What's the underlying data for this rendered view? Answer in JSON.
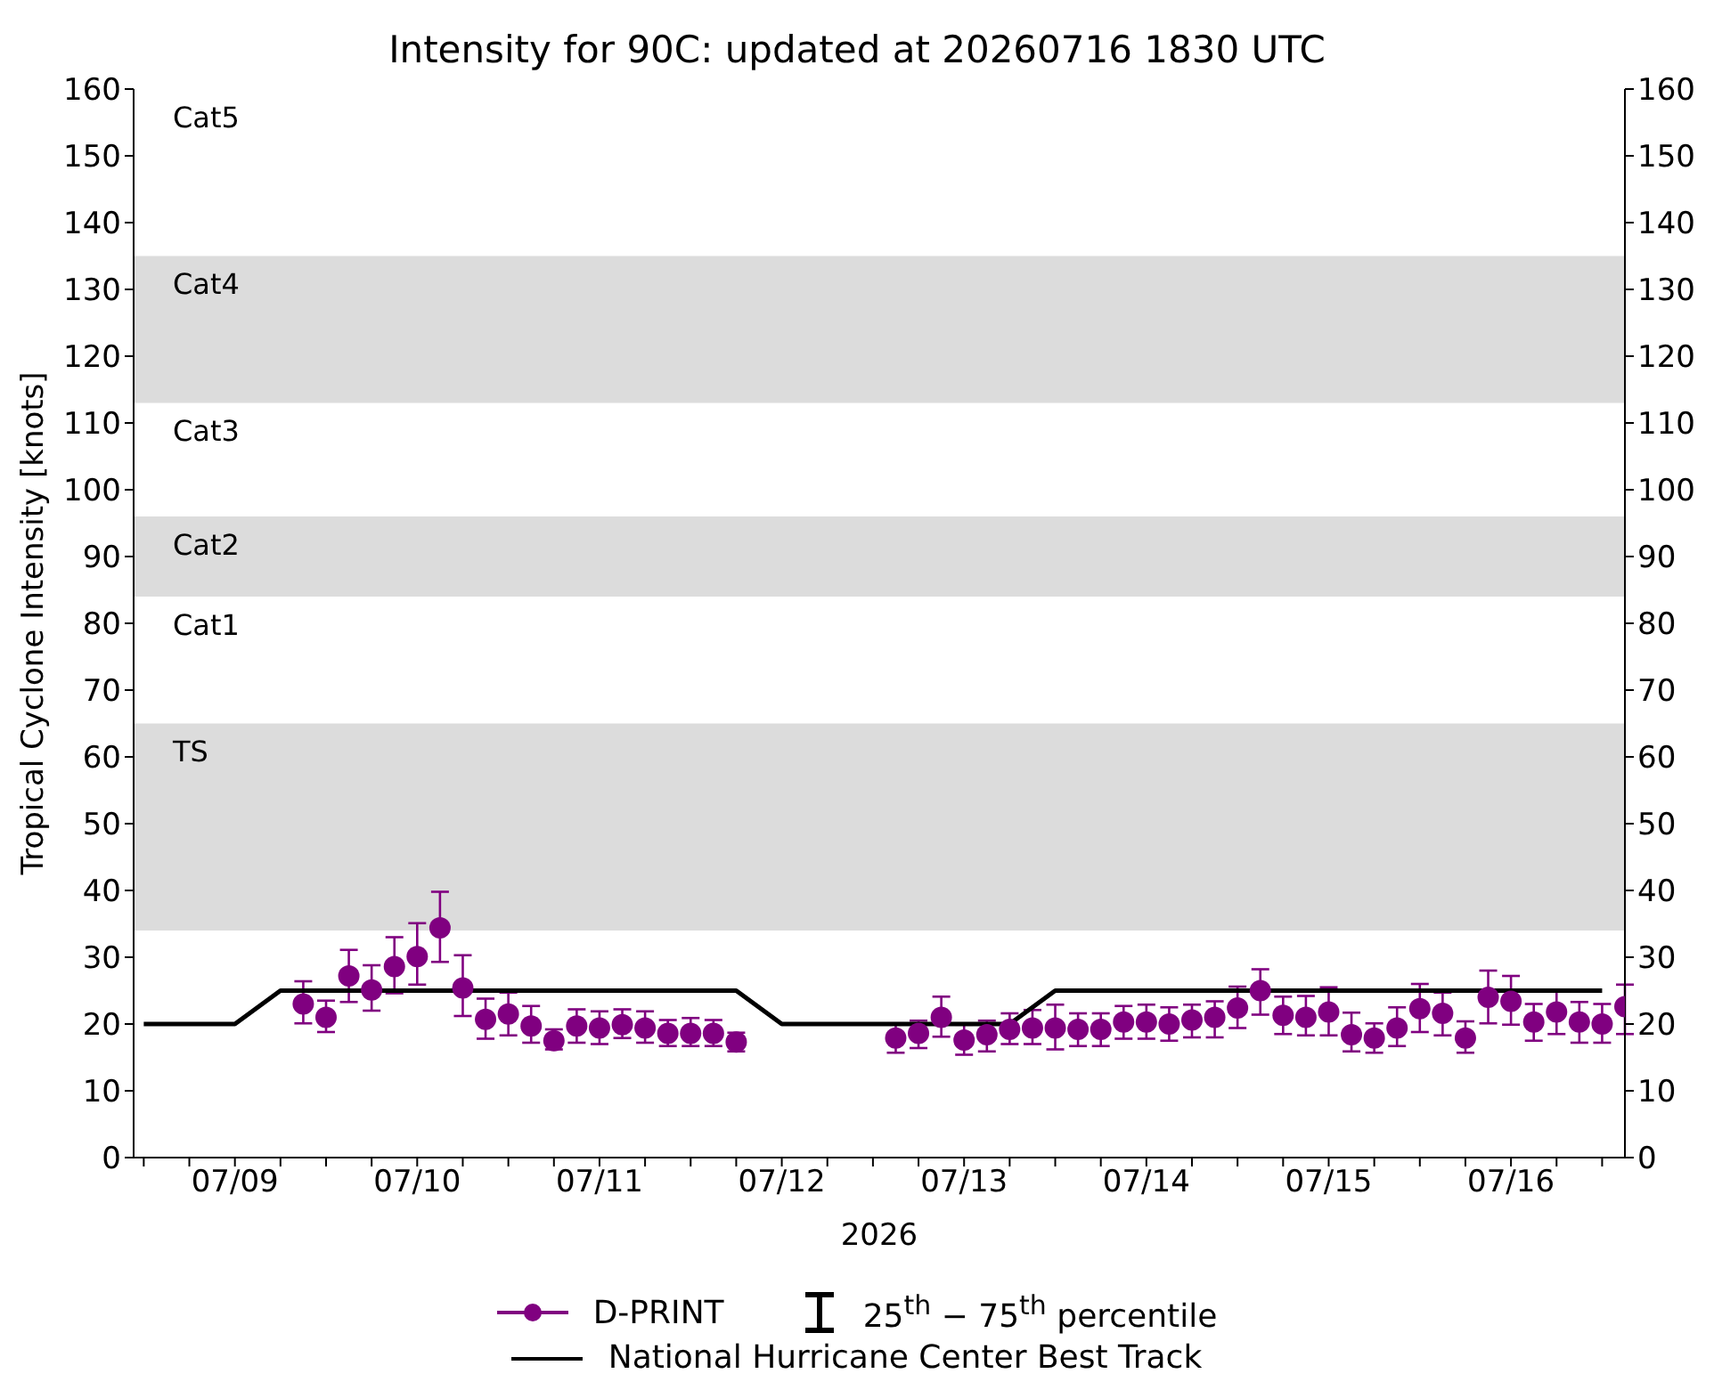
{
  "chart_data": {
    "type": "scatter",
    "title": "Intensity for 90C: updated at 20260716 1830 UTC",
    "xlabel": "2026",
    "ylabel": "Tropical Cyclone Intensity [knots]",
    "annotations": [
      "25$^{th}$ − 75$^{th}$ percentile",
      "Cat1",
      "Cat3",
      "Cat5"
    ],
    "xlim": [
      "2026-07-08T10:40",
      "2026-07-16T15:00"
    ],
    "xticks": [
      {
        "value": "2026-07-08T12:00",
        "label": null
      },
      {
        "value": "2026-07-08T18:00",
        "label": null
      },
      {
        "value": "2026-07-09",
        "label": "07/09"
      },
      {
        "value": "2026-07-09T06:00",
        "label": null
      },
      {
        "value": "2026-07-09T12:00",
        "label": null
      },
      {
        "value": "2026-07-09T18:00",
        "label": null
      },
      {
        "value": "2026-07-10",
        "label": "07/10"
      },
      {
        "value": "2026-07-10T06:00",
        "label": null
      },
      {
        "value": "2026-07-10T12:00",
        "label": null
      },
      {
        "value": "2026-07-10T18:00",
        "label": null
      },
      {
        "value": "2026-07-11",
        "label": "07/11"
      },
      {
        "value": "2026-07-11T06:00",
        "label": null
      },
      {
        "value": "2026-07-11T12:00",
        "label": null
      },
      {
        "value": "2026-07-11T18:00",
        "label": null
      },
      {
        "value": "2026-07-12",
        "label": "07/12"
      },
      {
        "value": "2026-07-12T06:00",
        "label": null
      },
      {
        "value": "2026-07-12T12:00",
        "label": null
      },
      {
        "value": "2026-07-12T18:00",
        "label": null
      },
      {
        "value": "2026-07-13",
        "label": "07/13"
      },
      {
        "value": "2026-07-13T06:00",
        "label": null
      },
      {
        "value": "2026-07-13T12:00",
        "label": null
      },
      {
        "value": "2026-07-13T18:00",
        "label": null
      },
      {
        "value": "2026-07-14",
        "label": "07/14"
      },
      {
        "value": "2026-07-14T06:00",
        "label": null
      },
      {
        "value": "2026-07-14T12:00",
        "label": null
      },
      {
        "value": "2026-07-14T18:00",
        "label": null
      },
      {
        "value": "2026-07-15",
        "label": "07/15"
      },
      {
        "value": "2026-07-15T06:00",
        "label": null
      },
      {
        "value": "2026-07-15T12:00",
        "label": null
      },
      {
        "value": "2026-07-15T18:00",
        "label": null
      },
      {
        "value": "2026-07-16",
        "label": "07/16"
      },
      {
        "value": "2026-07-16T06:00",
        "label": null
      },
      {
        "value": "2026-07-16T12:00",
        "label": null
      }
    ],
    "ylim": [
      0,
      160
    ],
    "yticks": [
      0,
      10,
      20,
      30,
      40,
      50,
      60,
      70,
      80,
      90,
      100,
      110,
      120,
      130,
      140,
      150,
      160
    ],
    "y2lim": [
      0,
      160
    ],
    "y2ticks": [
      0,
      10,
      20,
      30,
      40,
      50,
      60,
      70,
      80,
      90,
      100,
      110,
      120,
      130,
      140,
      150,
      160
    ],
    "bands": [
      {
        "axis": "y",
        "from": 34,
        "to": 65,
        "label": "TS",
        "color": "#dcdcdc"
      },
      {
        "axis": "y",
        "from": 84,
        "to": 96,
        "label": "Cat2",
        "color": "#dcdcdc"
      },
      {
        "axis": "y",
        "from": 113,
        "to": 135,
        "label": "Cat4",
        "color": "#dcdcdc"
      }
    ],
    "legend": "bottom",
    "line_style": "solid",
    "series": [
      {
        "name": "D-PRINT",
        "marker": "circle",
        "color": "#800080",
        "x": [
          "2026-07-09T09:00",
          "2026-07-09T12:00",
          "2026-07-09T15:00",
          "2026-07-09T18:00",
          "2026-07-09T21:00",
          "2026-07-10T00:00",
          "2026-07-10T03:00",
          "2026-07-10T06:00",
          "2026-07-10T09:00",
          "2026-07-10T12:00",
          "2026-07-10T15:00",
          "2026-07-10T18:00",
          "2026-07-10T21:00",
          "2026-07-11T00:00",
          "2026-07-11T03:00",
          "2026-07-11T06:00",
          "2026-07-11T09:00",
          "2026-07-11T12:00",
          "2026-07-11T15:00",
          "2026-07-11T18:00",
          "2026-07-12T15:00",
          "2026-07-12T18:00",
          "2026-07-12T21:00",
          "2026-07-13T00:00",
          "2026-07-13T03:00",
          "2026-07-13T06:00",
          "2026-07-13T09:00",
          "2026-07-13T12:00",
          "2026-07-13T15:00",
          "2026-07-13T18:00",
          "2026-07-13T21:00",
          "2026-07-14T00:00",
          "2026-07-14T03:00",
          "2026-07-14T06:00",
          "2026-07-14T09:00",
          "2026-07-14T12:00",
          "2026-07-14T15:00",
          "2026-07-14T18:00",
          "2026-07-14T21:00",
          "2026-07-15T00:00",
          "2026-07-15T03:00",
          "2026-07-15T06:00",
          "2026-07-15T09:00",
          "2026-07-15T12:00",
          "2026-07-15T15:00",
          "2026-07-15T18:00",
          "2026-07-15T21:00",
          "2026-07-16T00:00",
          "2026-07-16T03:00",
          "2026-07-16T06:00",
          "2026-07-16T09:00",
          "2026-07-16T12:00",
          "2026-07-16T15:00"
        ],
        "values": [
          23.0,
          21.0,
          27.2,
          25.1,
          28.6,
          30.1,
          34.4,
          25.4,
          20.7,
          21.5,
          19.7,
          17.5,
          19.7,
          19.4,
          19.9,
          19.4,
          18.6,
          18.6,
          18.6,
          17.3,
          17.9,
          18.6,
          21.0,
          17.6,
          18.4,
          19.2,
          19.4,
          19.4,
          19.2,
          19.2,
          20.3,
          20.3,
          20.0,
          20.6,
          21.0,
          22.4,
          25.0,
          21.3,
          21.0,
          21.8,
          18.4,
          17.9,
          19.4,
          22.3,
          21.6,
          17.9,
          24.0,
          23.4,
          20.3,
          21.8,
          20.3,
          20.0,
          22.6
        ],
        "errors": [
          [
            20.1,
            26.4
          ],
          [
            18.8,
            23.5
          ],
          [
            23.3,
            31.1
          ],
          [
            22.0,
            28.8
          ],
          [
            24.6,
            33.0
          ],
          [
            25.9,
            35.1
          ],
          [
            29.3,
            39.8
          ],
          [
            21.2,
            30.3
          ],
          [
            17.8,
            23.8
          ],
          [
            18.3,
            24.7
          ],
          [
            17.2,
            22.7
          ],
          [
            16.2,
            19.2
          ],
          [
            17.2,
            22.2
          ],
          [
            17.0,
            21.9
          ],
          [
            17.9,
            22.2
          ],
          [
            17.2,
            21.9
          ],
          [
            16.7,
            20.6
          ],
          [
            16.7,
            20.9
          ],
          [
            16.7,
            20.6
          ],
          [
            15.9,
            18.7
          ],
          [
            15.7,
            20.1
          ],
          [
            16.4,
            20.5
          ],
          [
            18.1,
            24.1
          ],
          [
            15.4,
            19.9
          ],
          [
            15.9,
            20.5
          ],
          [
            17.0,
            21.6
          ],
          [
            17.0,
            22.1
          ],
          [
            16.2,
            22.9
          ],
          [
            16.7,
            21.6
          ],
          [
            16.7,
            21.6
          ],
          [
            17.8,
            22.7
          ],
          [
            17.8,
            22.9
          ],
          [
            17.5,
            22.5
          ],
          [
            18.0,
            22.9
          ],
          [
            18.0,
            23.4
          ],
          [
            19.4,
            25.6
          ],
          [
            21.4,
            28.2
          ],
          [
            18.5,
            24.1
          ],
          [
            18.3,
            24.2
          ],
          [
            18.3,
            25.5
          ],
          [
            15.9,
            21.7
          ],
          [
            15.7,
            20.1
          ],
          [
            16.7,
            22.5
          ],
          [
            18.8,
            26.0
          ],
          [
            18.3,
            24.7
          ],
          [
            15.7,
            20.4
          ],
          [
            20.1,
            28.0
          ],
          [
            19.9,
            27.2
          ],
          [
            17.5,
            23.0
          ],
          [
            18.5,
            25.1
          ],
          [
            17.2,
            23.3
          ],
          [
            17.2,
            23.0
          ],
          [
            18.5,
            25.9
          ]
        ]
      },
      {
        "name": "National Hurricane Center Best Track",
        "type": "line",
        "color": "#000000",
        "x": [
          "2026-07-08T12:00",
          "2026-07-09T00:00",
          "2026-07-09T06:00",
          "2026-07-11T18:00",
          "2026-07-12T00:00",
          "2026-07-13T06:00",
          "2026-07-13T12:00",
          "2026-07-16T12:00"
        ],
        "values": [
          20,
          20,
          25,
          25,
          20,
          20,
          25,
          25
        ]
      }
    ]
  }
}
